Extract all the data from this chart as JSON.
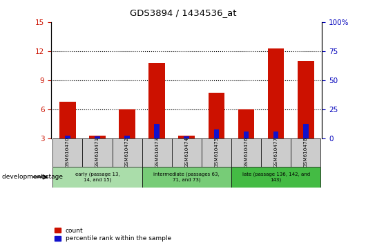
{
  "title": "GDS3894 / 1434536_at",
  "categories": [
    "GSM610470",
    "GSM610471",
    "GSM610472",
    "GSM610473",
    "GSM610474",
    "GSM610475",
    "GSM610476",
    "GSM610477",
    "GSM610478"
  ],
  "red_values": [
    6.8,
    3.3,
    6.0,
    10.8,
    3.3,
    7.7,
    6.0,
    12.3,
    11.0
  ],
  "blue_values": [
    3.3,
    3.2,
    3.3,
    4.5,
    3.2,
    3.9,
    3.7,
    3.7,
    4.5
  ],
  "ylim_left": [
    3,
    15
  ],
  "yticks_left": [
    3,
    6,
    9,
    12,
    15
  ],
  "yticks_right": [
    0,
    25,
    50,
    75,
    100
  ],
  "red_color": "#CC1100",
  "blue_color": "#1111CC",
  "red_bar_width": 0.55,
  "blue_bar_width": 0.18,
  "grid_yticks": [
    6,
    9,
    12
  ],
  "tick_area_color": "#cccccc",
  "legend_count": "count",
  "legend_percentile": "percentile rank within the sample",
  "dev_stage_label": "development stage",
  "right_axis_color": "#0000BB",
  "left_axis_color": "#CC1100",
  "group_data": [
    {
      "span": [
        0,
        2
      ],
      "label": "early (passage 13,\n14, and 15)",
      "color": "#aaddaa"
    },
    {
      "span": [
        3,
        5
      ],
      "label": "intermediate (passages 63,\n71, and 73)",
      "color": "#77cc77"
    },
    {
      "span": [
        6,
        8
      ],
      "label": "late (passage 136, 142, and\n143)",
      "color": "#44bb44"
    }
  ]
}
